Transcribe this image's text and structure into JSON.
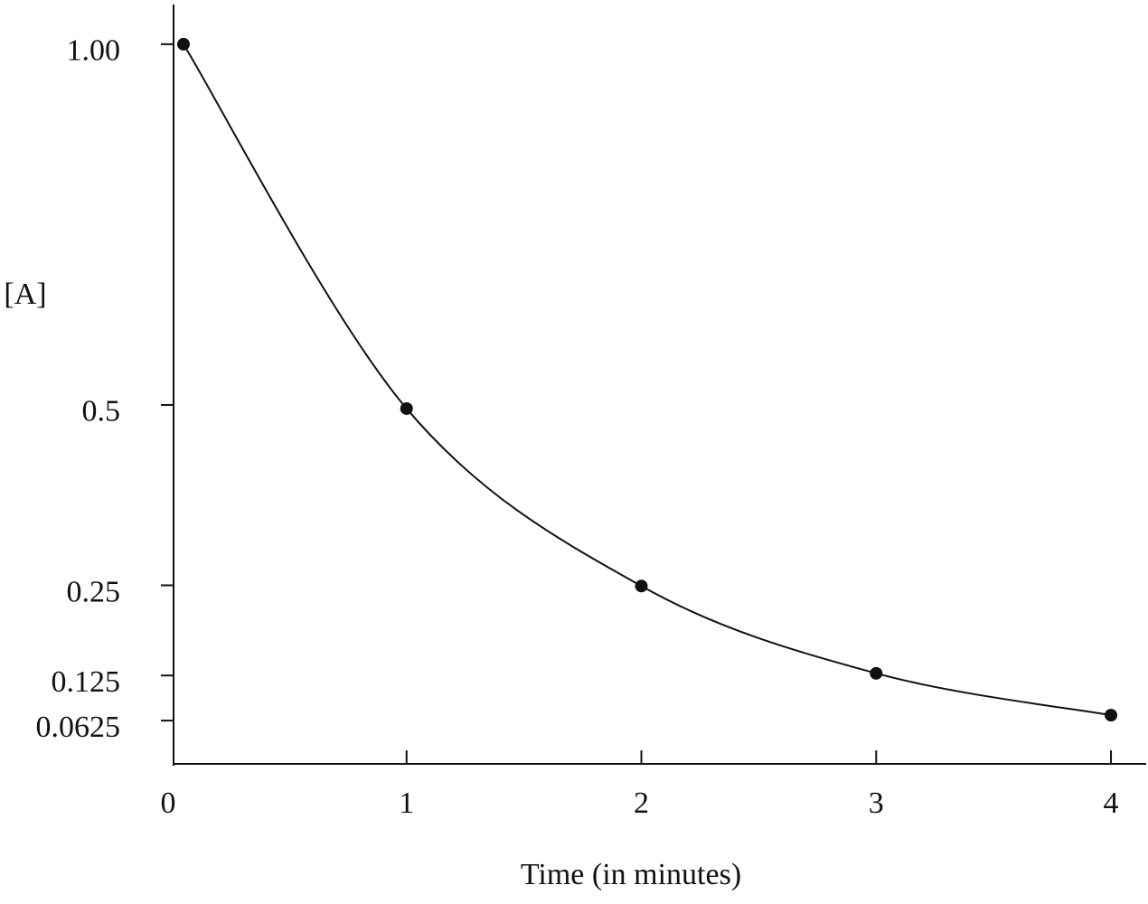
{
  "chart_data": {
    "type": "line",
    "y_label": "[A]",
    "x_label": "Time (in minutes)",
    "x": [
      0.05,
      1,
      2,
      3,
      4
    ],
    "series": [
      {
        "color": "#111111",
        "values": [
          1.0,
          0.495,
          0.249,
          0.128,
          0.07
        ]
      }
    ],
    "xlim": [
      0,
      4.15
    ],
    "ylim": [
      0,
      1.055
    ],
    "xticks": [
      0,
      1,
      2,
      3,
      4
    ],
    "yticks": [
      {
        "value": 1,
        "label": "1.00"
      },
      0.5,
      0.25,
      0.125,
      0.0625
    ],
    "grid": false
  }
}
